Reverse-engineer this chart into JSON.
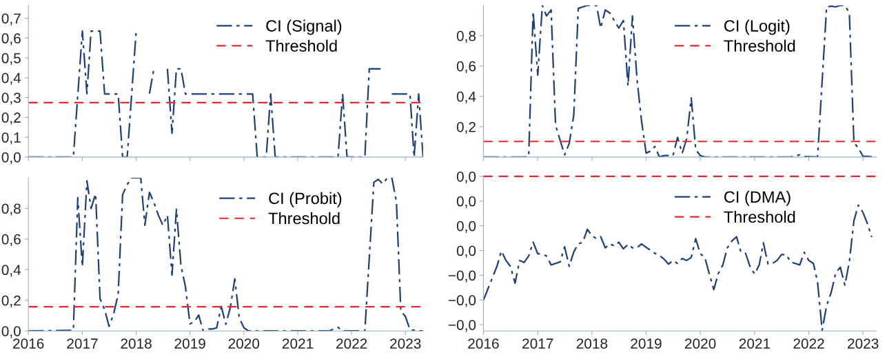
{
  "chart_data": [
    {
      "type": "line",
      "legend": "top right",
      "tick_labels": "y",
      "xlim": [
        "2016-01",
        "2023-05"
      ],
      "ylim": [
        0,
        0.765
      ],
      "xticks": [
        {
          "value": "2016-01",
          "label": null
        },
        {
          "value": "2017-01",
          "label": null
        },
        {
          "value": "2018-01",
          "label": null
        },
        {
          "value": "2019-01",
          "label": null
        },
        {
          "value": "2020-01",
          "label": null
        },
        {
          "value": "2021-01",
          "label": null
        },
        {
          "value": "2022-01",
          "label": null
        },
        {
          "value": "2023-01",
          "label": null
        }
      ],
      "yticks": [
        {
          "value": 0,
          "label": "0,0"
        },
        {
          "value": 0.1,
          "label": "0,1"
        },
        {
          "value": 0.2,
          "label": "0,2"
        },
        {
          "value": 0.3,
          "label": "0,3"
        },
        {
          "value": 0.4,
          "label": "0,4"
        },
        {
          "value": 0.5,
          "label": "0,5"
        },
        {
          "value": 0.6,
          "label": "0,6"
        },
        {
          "value": 0.7,
          "label": "0,7"
        }
      ],
      "series": [
        {
          "name": "CI (Signal)",
          "color": "#1b3f7e",
          "line_style": "dashdot",
          "x": [
            "2016-01",
            "2016-11",
            "2017-01",
            "2017-02",
            "2017-03",
            "2017-05",
            "2017-06",
            "2017-09",
            "2017-10",
            "2017-11",
            "2018-01",
            "2018-02",
            "2018-03",
            "2018-04",
            "2018-05",
            "2018-06",
            "2018-08",
            "2018-09",
            "2018-10",
            "2018-11",
            "2018-12",
            "2020-03",
            "2020-04",
            "2020-06",
            "2020-07",
            "2020-08",
            "2021-10",
            "2021-11",
            "2021-12",
            "2022-04",
            "2022-05",
            "2022-08",
            "2022-09",
            "2022-10",
            "2023-02",
            "2023-03",
            "2023-04",
            "2023-05"
          ],
          "values": [
            0,
            0,
            0.635,
            0.32,
            0.635,
            0.635,
            0.318,
            0.318,
            0,
            0,
            0.635,
            null,
            null,
            0.32,
            0.445,
            null,
            0.445,
            0.12,
            0.445,
            0.445,
            0.318,
            0.318,
            0,
            0,
            0.318,
            0,
            0,
            0.318,
            0,
            0,
            0.445,
            0.445,
            null,
            0.318,
            0.318,
            0,
            0.318,
            0
          ]
        }
      ],
      "ref_lines": [
        {
          "axis": "y",
          "value": 0.275,
          "label": "Threshold",
          "color": "#e8262b",
          "line_style": "dashed"
        }
      ]
    },
    {
      "type": "line",
      "legend": "top right",
      "tick_labels": "y",
      "xlim": [
        "2016-01",
        "2023-04"
      ],
      "ylim": [
        0,
        1.0
      ],
      "xticks": [
        {
          "value": "2016-01",
          "label": null
        },
        {
          "value": "2017-01",
          "label": null
        },
        {
          "value": "2018-01",
          "label": null
        },
        {
          "value": "2019-01",
          "label": null
        },
        {
          "value": "2020-01",
          "label": null
        },
        {
          "value": "2021-01",
          "label": null
        },
        {
          "value": "2022-01",
          "label": null
        },
        {
          "value": "2023-01",
          "label": null
        }
      ],
      "yticks": [
        {
          "value": 0.2,
          "label": "0,2"
        },
        {
          "value": 0.4,
          "label": "0,4"
        },
        {
          "value": 0.6,
          "label": "0,6"
        },
        {
          "value": 0.8,
          "label": "0,8"
        }
      ],
      "series": [
        {
          "name": "CI (Logit)",
          "color": "#1b3f7e",
          "line_style": "dashdot",
          "x": [
            "2016-01",
            "2016-10",
            "2016-11",
            "2016-12",
            "2017-01",
            "2017-02",
            "2017-03",
            "2017-04",
            "2017-05",
            "2017-06",
            "2017-07",
            "2017-08",
            "2017-09",
            "2017-10",
            "2017-11",
            "2017-12",
            "2018-02",
            "2018-03",
            "2018-04",
            "2018-05",
            "2018-07",
            "2018-08",
            "2018-09",
            "2018-10",
            "2018-11",
            "2018-12",
            "2019-01",
            "2019-02",
            "2019-03",
            "2019-04",
            "2019-05",
            "2019-06",
            "2019-07",
            "2019-08",
            "2019-09",
            "2019-10",
            "2019-11",
            "2019-12",
            "2020-01",
            "2020-02",
            "2021-09",
            "2021-11",
            "2021-12",
            "2022-03",
            "2022-05",
            "2022-06",
            "2022-07",
            "2022-08",
            "2022-09",
            "2022-10",
            "2022-11",
            "2022-12",
            "2023-01",
            "2023-02",
            "2023-04"
          ],
          "values": [
            0,
            0,
            0.005,
            0.96,
            0.54,
            1.0,
            0.93,
            0.97,
            0.21,
            0.11,
            0.015,
            0.09,
            0.28,
            0.98,
            0.99,
            1.0,
            1.0,
            0.85,
            0.97,
            0.95,
            0.85,
            0.9,
            0.47,
            0.93,
            0.51,
            0.24,
            0.026,
            0.04,
            0.07,
            0,
            0.01,
            0.01,
            0.01,
            0.13,
            0.025,
            0.12,
            0.39,
            0.05,
            0.01,
            0,
            0,
            0.015,
            0.004,
            0,
            0.99,
            0.995,
            0.99,
            1.0,
            1.0,
            0.95,
            0.095,
            0.06,
            0.005,
            0.005,
            0
          ]
        }
      ],
      "ref_lines": [
        {
          "axis": "y",
          "value": 0.103,
          "label": "Threshold",
          "color": "#e8262b",
          "line_style": "dashed"
        }
      ]
    },
    {
      "type": "line",
      "legend": "top right",
      "xlim": [
        "2016-01",
        "2023-05"
      ],
      "ylim": [
        0,
        1.0
      ],
      "xticks": [
        {
          "value": "2016-01",
          "label": "2016"
        },
        {
          "value": "2017-01",
          "label": "2017"
        },
        {
          "value": "2018-01",
          "label": "2018"
        },
        {
          "value": "2019-01",
          "label": "2019"
        },
        {
          "value": "2020-01",
          "label": "2020"
        },
        {
          "value": "2021-01",
          "label": "2021"
        },
        {
          "value": "2022-01",
          "label": "2022"
        },
        {
          "value": "2023-01",
          "label": "2023"
        }
      ],
      "yticks": [
        {
          "value": 0,
          "label": "0,0"
        },
        {
          "value": 0.2,
          "label": "0,2"
        },
        {
          "value": 0.4,
          "label": "0,4"
        },
        {
          "value": 0.6,
          "label": "0,6"
        },
        {
          "value": 0.8,
          "label": "0,8"
        }
      ],
      "series": [
        {
          "name": "CI (Probit)",
          "color": "#1b3f7e",
          "line_style": "dashdot",
          "x": [
            "2016-01",
            "2016-11",
            "2016-12",
            "2017-01",
            "2017-02",
            "2017-03",
            "2017-04",
            "2017-05",
            "2017-06",
            "2017-07",
            "2017-08",
            "2017-09",
            "2017-10",
            "2017-11",
            "2017-12",
            "2018-02",
            "2018-03",
            "2018-04",
            "2018-05",
            "2018-06",
            "2018-07",
            "2018-08",
            "2018-09",
            "2018-10",
            "2018-11",
            "2018-12",
            "2019-01",
            "2019-02",
            "2019-03",
            "2019-04",
            "2019-05",
            "2019-06",
            "2019-07",
            "2019-08",
            "2019-09",
            "2019-10",
            "2019-11",
            "2019-12",
            "2020-01",
            "2020-02",
            "2021-08",
            "2021-10",
            "2021-11",
            "2022-04",
            "2022-06",
            "2022-07",
            "2022-08",
            "2022-09",
            "2022-10",
            "2022-11",
            "2022-12",
            "2023-01",
            "2023-02",
            "2023-03",
            "2023-04",
            "2023-05"
          ],
          "values": [
            0,
            0.004,
            0.87,
            0.42,
            0.98,
            0.8,
            0.895,
            0.21,
            0.14,
            0.03,
            0.11,
            0.24,
            0.89,
            0.955,
            1.0,
            1.0,
            0.69,
            0.905,
            0.84,
            0.755,
            0.69,
            0.755,
            0.365,
            0.795,
            0.425,
            0.29,
            0.046,
            0.062,
            0.104,
            0,
            0.013,
            0.013,
            0.02,
            0.16,
            0.044,
            0.15,
            0.34,
            0.086,
            0.022,
            0,
            0,
            0.024,
            0,
            0,
            0.97,
            0.99,
            0.96,
            1.0,
            1.0,
            0.845,
            0.128,
            0.095,
            0.007,
            0.005,
            0,
            0
          ]
        }
      ],
      "ref_lines": [
        {
          "axis": "y",
          "value": 0.158,
          "label": "Threshold",
          "color": "#e8262b",
          "line_style": "dashed"
        }
      ]
    },
    {
      "type": "line",
      "legend": "top right",
      "xlim": [
        "2016-01",
        "2023-04"
      ],
      "ylim": [
        -0.0325,
        0.03
      ],
      "xticks": [
        {
          "value": "2016-01",
          "label": "2016"
        },
        {
          "value": "2017-01",
          "label": "2017"
        },
        {
          "value": "2018-01",
          "label": "2018"
        },
        {
          "value": "2019-01",
          "label": "2019"
        },
        {
          "value": "2020-01",
          "label": "2020"
        },
        {
          "value": "2021-01",
          "label": "2021"
        },
        {
          "value": "2022-01",
          "label": "2022"
        },
        {
          "value": "2023-01",
          "label": "2023"
        }
      ],
      "yticks": [
        {
          "value": 0.03,
          "label": "0,0"
        },
        {
          "value": 0.02,
          "label": "0,0"
        },
        {
          "value": 0.01,
          "label": "0,0"
        },
        {
          "value": 0,
          "label": "0,0"
        },
        {
          "value": -0.01,
          "label": "−0,0"
        },
        {
          "value": -0.02,
          "label": "−0,0"
        },
        {
          "value": -0.03,
          "label": "−0,0"
        }
      ],
      "series": [
        {
          "name": "CI (DMA)",
          "color": "#1b3f7e",
          "line_style": "dashdot",
          "x": [
            "2016-01",
            "2016-03",
            "2016-04",
            "2016-05",
            "2016-06",
            "2016-07",
            "2016-08",
            "2016-09",
            "2016-10",
            "2016-11",
            "2016-12",
            "2017-01",
            "2017-02",
            "2017-03",
            "2017-04",
            "2017-06",
            "2017-07",
            "2017-08",
            "2017-09",
            "2017-10",
            "2017-11",
            "2017-12",
            "2018-01",
            "2018-02",
            "2018-03",
            "2018-04",
            "2018-05",
            "2018-06",
            "2018-07",
            "2018-08",
            "2018-09",
            "2018-10",
            "2018-11",
            "2018-12",
            "2019-01",
            "2019-02",
            "2019-03",
            "2019-04",
            "2019-05",
            "2019-06",
            "2019-07",
            "2019-08",
            "2019-09",
            "2019-10",
            "2019-11",
            "2019-12",
            "2020-01",
            "2020-02",
            "2020-03",
            "2020-04",
            "2020-05",
            "2020-06",
            "2020-07",
            "2020-08",
            "2020-09",
            "2020-10",
            "2020-11",
            "2020-12",
            "2021-01",
            "2021-02",
            "2021-03",
            "2021-04",
            "2021-05",
            "2021-06",
            "2021-07",
            "2021-08",
            "2021-09",
            "2021-10",
            "2021-11",
            "2021-12",
            "2022-01",
            "2022-02",
            "2022-03",
            "2022-04",
            "2022-05",
            "2022-06",
            "2022-07",
            "2022-08",
            "2022-09",
            "2022-10",
            "2022-11",
            "2022-12",
            "2023-01",
            "2023-02",
            "2023-03"
          ],
          "values": [
            -0.0201,
            -0.011,
            -0.0064,
            -0.0002,
            -0.004,
            -0.0064,
            -0.0132,
            -0.004,
            -0.0048,
            -0.0022,
            0.0034,
            -0.0013,
            -0.0014,
            -0.0022,
            -0.0058,
            -0.0046,
            0.0015,
            -0.0064,
            -0.0005,
            0.0027,
            0.0034,
            0.0086,
            0.006,
            0.0048,
            0.0056,
            0.0011,
            0.0027,
            0.0019,
            0.0034,
            0.0007,
            0.0025,
            0.0011,
            0.0011,
            0.0027,
            0.0013,
            0.0001,
            -0.0011,
            -0.002,
            -0.0034,
            -0.0055,
            -0.004,
            -0.0052,
            -0.0032,
            -0.004,
            -0.0028,
            0.0048,
            -0.0013,
            -0.0028,
            -0.0093,
            -0.0158,
            -0.0093,
            -0.0058,
            0.0011,
            0.0039,
            0.0056,
            -0.0007,
            -0.0011,
            -0.0064,
            -0.0095,
            -0.0058,
            0.0031,
            -0.0054,
            -0.0052,
            -0.004,
            -0.0016,
            -0.0016,
            -0.0046,
            -0.0052,
            -0.0058,
            -0.0007,
            -0.004,
            -0.0052,
            -0.0128,
            -0.0322,
            -0.0222,
            -0.0169,
            -0.0091,
            -0.0067,
            -0.014,
            -0.0046,
            0.0121,
            0.0184,
            0.0154,
            0.0107,
            0.0054
          ]
        }
      ],
      "ref_lines": [
        {
          "axis": "y",
          "value": 0.03,
          "label": "Threshold",
          "color": "#e8262b",
          "line_style": "dashed"
        }
      ]
    }
  ]
}
